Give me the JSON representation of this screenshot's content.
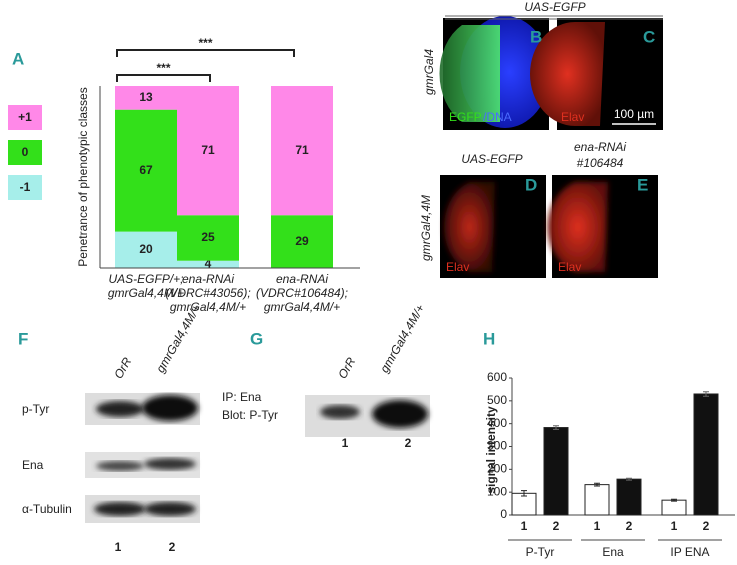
{
  "panel_labels": [
    "A",
    "B",
    "C",
    "D",
    "E",
    "F",
    "G",
    "H"
  ],
  "chart_data": [
    {
      "type": "stacked_bar",
      "y_label": "Penetrance of phenotypic classes",
      "categories": [
        [
          "UAS-EGFP/+;",
          "gmrGal4,4M/+"
        ],
        [
          "ena-RNAi",
          "(VDRC#43056);",
          "gmrGal4,4M/+"
        ],
        [
          "ena-RNAi",
          "(VDRC#106484);",
          "gmrGal4,4M/+"
        ]
      ],
      "series": [
        {
          "name": "-1",
          "color": "#a6eeea",
          "values": [
            20,
            4,
            null
          ]
        },
        {
          "name": "0",
          "color": "#33e01a",
          "values": [
            67,
            25,
            29
          ]
        },
        {
          "name": "+1",
          "color": "#ff88e8",
          "values": [
            13,
            71,
            71
          ]
        }
      ],
      "ylim": [
        0,
        100
      ],
      "annotations": [
        "***",
        "***"
      ]
    },
    {
      "type": "bar",
      "y_label": "signal intensity",
      "categories": [
        "P-Tyr",
        "Ena",
        "IP ENA"
      ],
      "series": [
        {
          "name": "1",
          "color": "#ffffff",
          "values": [
            95,
            133,
            65
          ],
          "errors": [
            12,
            6,
            4
          ]
        },
        {
          "name": "2",
          "color": "#111111",
          "values": [
            383,
            157,
            530
          ],
          "errors": [
            8,
            4,
            10
          ]
        }
      ],
      "ylim": [
        0,
        600
      ],
      "yticks": [
        0,
        100,
        200,
        300,
        400,
        500,
        600
      ]
    }
  ],
  "imaging": {
    "top_header": "UAS-EGFP",
    "row1_label": "gmrGal4",
    "b_text": [
      "EGFP",
      "/DNA"
    ],
    "c_text": "Elav",
    "scale": "100 µm",
    "d_header": "UAS-EGFP",
    "e_header": [
      "ena-RNAi",
      "#106484"
    ],
    "row2_label": "gmrGal4,4M",
    "d_text": "Elav",
    "e_text": "Elav"
  },
  "western_f": {
    "lanes": [
      "OrR",
      "gmrGal4,4M/+"
    ],
    "rows": [
      "p-Tyr",
      "Ena",
      "α-Tubulin"
    ],
    "lane_numbers": [
      "1",
      "2"
    ]
  },
  "western_g": {
    "lanes": [
      "OrR",
      "gmrGal4,4M/+"
    ],
    "labels": [
      "IP: Ena",
      "Blot: P-Tyr"
    ],
    "lane_numbers": [
      "1",
      "2"
    ]
  }
}
